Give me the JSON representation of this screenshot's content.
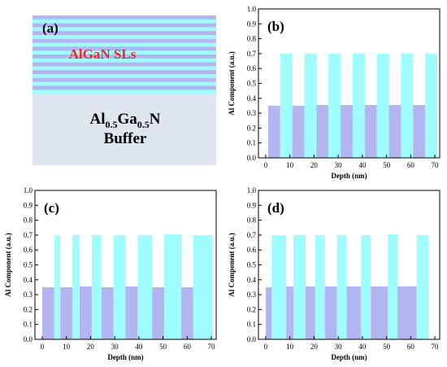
{
  "colors": {
    "layer_high": "#9ffdfd",
    "layer_low": "#b3b5f0",
    "buffer": "#dfe6f0",
    "sls_text": "#ff2020",
    "text": "#000000"
  },
  "panel_a": {
    "label": "(a)",
    "sls_label": "AlGaN SLs",
    "buffer_line1_prefix": "Al",
    "buffer_line1_sub1": "0.5",
    "buffer_line1_mid": "Ga",
    "buffer_line1_sub2": "0.5",
    "buffer_line1_suffix": "N",
    "buffer_line2": "Buffer",
    "stripe_count": 10
  },
  "chart_data": [
    {
      "panel": "(b)",
      "type": "bar",
      "xlabel": "Depth (nm)",
      "ylabel": "Al Component (a.u.)",
      "xlim": [
        -3,
        72
      ],
      "ylim": [
        0,
        1.0
      ],
      "xticks": [
        0,
        10,
        20,
        30,
        40,
        50,
        60,
        70
      ],
      "yticks": [
        0,
        0.1,
        0.2,
        0.3,
        0.4,
        0.5,
        0.6,
        0.7,
        0.8,
        0.9,
        1.0
      ],
      "grid": false,
      "segments": [
        {
          "x0": 1,
          "x1": 6,
          "y": 0.35
        },
        {
          "x0": 6,
          "x1": 11,
          "y": 0.7
        },
        {
          "x0": 11,
          "x1": 16,
          "y": 0.35
        },
        {
          "x0": 16,
          "x1": 21,
          "y": 0.7
        },
        {
          "x0": 21,
          "x1": 26,
          "y": 0.355
        },
        {
          "x0": 26,
          "x1": 31,
          "y": 0.7
        },
        {
          "x0": 31,
          "x1": 36,
          "y": 0.355
        },
        {
          "x0": 36,
          "x1": 41,
          "y": 0.7
        },
        {
          "x0": 41,
          "x1": 46,
          "y": 0.355
        },
        {
          "x0": 46,
          "x1": 51,
          "y": 0.7
        },
        {
          "x0": 51,
          "x1": 56,
          "y": 0.355
        },
        {
          "x0": 56,
          "x1": 61,
          "y": 0.7
        },
        {
          "x0": 61,
          "x1": 66,
          "y": 0.355
        },
        {
          "x0": 66,
          "x1": 71,
          "y": 0.7
        }
      ]
    },
    {
      "panel": "(c)",
      "type": "bar",
      "xlabel": "Depth (nm)",
      "ylabel": "Al Component (a.u.)",
      "xlim": [
        -3,
        72
      ],
      "ylim": [
        0,
        1.0
      ],
      "xticks": [
        0,
        10,
        20,
        30,
        40,
        50,
        60,
        70
      ],
      "yticks": [
        0,
        0.1,
        0.2,
        0.3,
        0.4,
        0.5,
        0.6,
        0.7,
        0.8,
        0.9,
        1.0
      ],
      "grid": false,
      "segments": [
        {
          "x0": 0,
          "x1": 5,
          "y": 0.35
        },
        {
          "x0": 5,
          "x1": 7.5,
          "y": 0.7
        },
        {
          "x0": 7.5,
          "x1": 12.5,
          "y": 0.35
        },
        {
          "x0": 12.5,
          "x1": 15.5,
          "y": 0.7
        },
        {
          "x0": 15.5,
          "x1": 20.5,
          "y": 0.355
        },
        {
          "x0": 20.5,
          "x1": 24.5,
          "y": 0.7
        },
        {
          "x0": 24.5,
          "x1": 29.5,
          "y": 0.35
        },
        {
          "x0": 29.5,
          "x1": 34.5,
          "y": 0.7
        },
        {
          "x0": 34.5,
          "x1": 39.5,
          "y": 0.355
        },
        {
          "x0": 39.5,
          "x1": 45.5,
          "y": 0.7
        },
        {
          "x0": 45.5,
          "x1": 50.5,
          "y": 0.35
        },
        {
          "x0": 50.5,
          "x1": 57.5,
          "y": 0.705
        },
        {
          "x0": 57.5,
          "x1": 62.5,
          "y": 0.35
        },
        {
          "x0": 62.5,
          "x1": 70.5,
          "y": 0.7
        }
      ]
    },
    {
      "panel": "(d)",
      "type": "bar",
      "xlabel": "Depth (nm)",
      "ylabel": "Al Component (a.u.)",
      "xlim": [
        -3,
        72
      ],
      "ylim": [
        0,
        1.0
      ],
      "xticks": [
        0,
        10,
        20,
        30,
        40,
        50,
        60,
        70
      ],
      "yticks": [
        0,
        0.1,
        0.2,
        0.3,
        0.4,
        0.5,
        0.6,
        0.7,
        0.8,
        0.9,
        1.0
      ],
      "grid": false,
      "segments": [
        {
          "x0": 0,
          "x1": 2.5,
          "y": 0.35
        },
        {
          "x0": 2.5,
          "x1": 8.5,
          "y": 0.7
        },
        {
          "x0": 8.5,
          "x1": 11.5,
          "y": 0.355
        },
        {
          "x0": 11.5,
          "x1": 16.5,
          "y": 0.7
        },
        {
          "x0": 16.5,
          "x1": 20.5,
          "y": 0.355
        },
        {
          "x0": 20.5,
          "x1": 24.5,
          "y": 0.7
        },
        {
          "x0": 24.5,
          "x1": 29.5,
          "y": 0.355
        },
        {
          "x0": 29.5,
          "x1": 33.5,
          "y": 0.7
        },
        {
          "x0": 33.5,
          "x1": 39.5,
          "y": 0.355
        },
        {
          "x0": 39.5,
          "x1": 43.5,
          "y": 0.7
        },
        {
          "x0": 43.5,
          "x1": 50.5,
          "y": 0.355
        },
        {
          "x0": 50.5,
          "x1": 54.5,
          "y": 0.705
        },
        {
          "x0": 54.5,
          "x1": 62.5,
          "y": 0.355
        },
        {
          "x0": 62.5,
          "x1": 67.5,
          "y": 0.7
        }
      ]
    }
  ]
}
